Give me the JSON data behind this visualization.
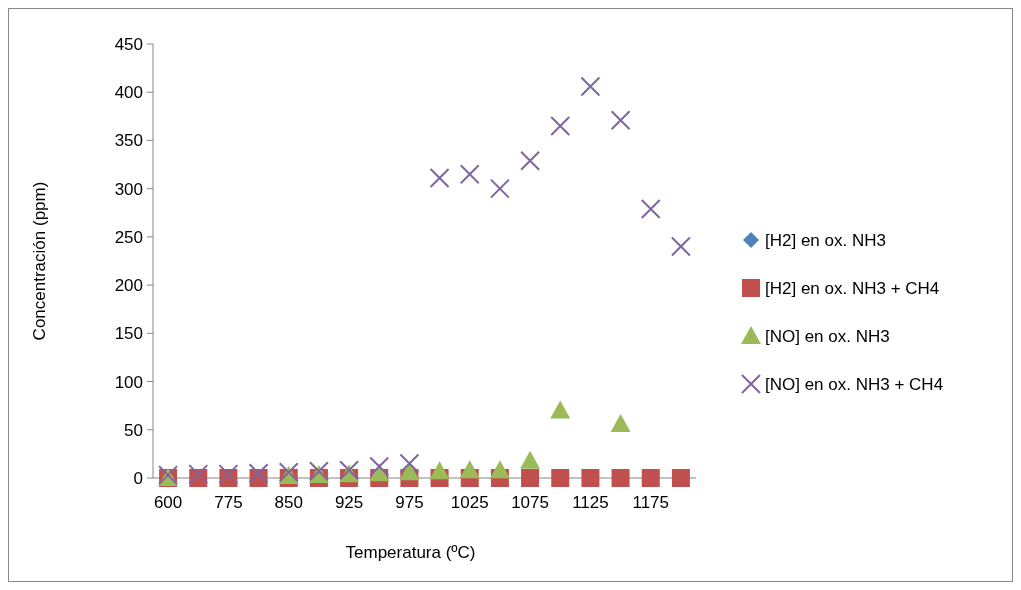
{
  "chart_data": {
    "type": "scatter",
    "xlabel": "Temperatura (ºC)",
    "ylabel": "Concentración (ppm)",
    "categories": [
      "600",
      null,
      "775",
      null,
      "850",
      null,
      "925",
      null,
      "975",
      null,
      "1025",
      null,
      "1075",
      null,
      "1125",
      null,
      "1175",
      null
    ],
    "ylim": [
      0,
      450
    ],
    "yticks": [
      0,
      50,
      100,
      150,
      200,
      250,
      300,
      350,
      400,
      450
    ],
    "grid": false,
    "legend": "right",
    "series": [
      {
        "name": "[H2] en ox. NH3",
        "color": "#4f81bd",
        "marker": "diamond",
        "values": [
          null,
          null,
          null,
          null,
          null,
          null,
          null,
          null,
          null,
          null,
          null,
          null,
          null,
          null,
          null,
          null,
          null,
          null
        ]
      },
      {
        "name": "[H2] en ox. NH3 + CH4",
        "color": "#c0504d",
        "marker": "square",
        "values": [
          0,
          0,
          0,
          0,
          0,
          0,
          0,
          0,
          0,
          0,
          0,
          0,
          0,
          0,
          0,
          0,
          0,
          0
        ]
      },
      {
        "name": "[NO] en ox. NH3",
        "color": "#9bbb59",
        "marker": "triangle",
        "values": [
          0,
          null,
          null,
          null,
          2,
          3,
          4,
          5,
          6,
          7,
          8,
          8,
          18,
          70,
          null,
          56,
          null,
          null
        ]
      },
      {
        "name": "[NO] en ox. NH3 + CH4",
        "color": "#8064a2",
        "marker": "cross",
        "values": [
          3,
          4,
          4,
          5,
          6,
          7,
          8,
          12,
          15,
          311,
          315,
          300,
          329,
          365,
          406,
          371,
          279,
          240
        ]
      }
    ]
  }
}
